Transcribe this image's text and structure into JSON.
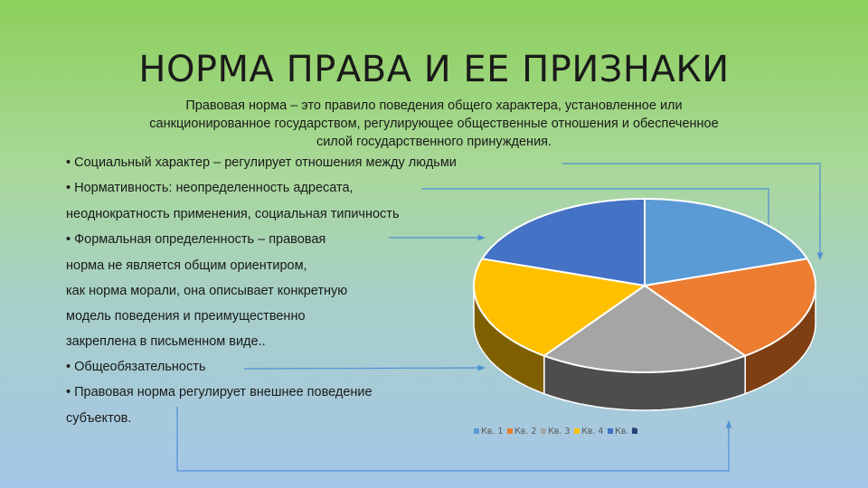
{
  "title": "НОРМА ПРАВА И ЕЕ ПРИЗНАКИ",
  "definition": {
    "line1": "Правовая норма – это правило поведения общего характера, установленное или",
    "line2": "санкционированное государством, регулирующее общественные отношения и обеспеченное",
    "line3": "силой государственного принуждения."
  },
  "lines": [
    "• Социальный характер – регулирует отношения между людьми",
    "• Нормативность: неопределенность адресата,",
    "неоднократность применения, социальная типичность",
    "• Формальная определенность – правовая",
    "норма не является общим ориентиром,",
    "как норма морали, она описывает конкретную",
    "модель поведения и преимущественно",
    "закреплена в письменном виде..",
    "• Общеобязательность",
    "• Правовая норма регулирует внешнее поведение",
    "субъектов."
  ],
  "colors": {
    "line": "#4f8fd4",
    "text": "#1a1a1a",
    "legend_text": "#595959",
    "series": [
      "#5b9bd5",
      "#ed7d31",
      "#a5a5a5",
      "#ffc000",
      "#4472c4"
    ],
    "sides": [
      "#36608a",
      "#7f3f13",
      "#4d4d4d",
      "#7f6000",
      "#2a4a86"
    ]
  },
  "chart_data": {
    "type": "pie",
    "style": "3d",
    "categories": [
      "Кв. 1",
      "Кв. 2",
      "Кв. 3",
      "Кв. 4",
      "Кв. 5"
    ],
    "values": [
      20,
      20,
      20,
      20,
      20
    ],
    "legend_position": "bottom",
    "legend_extra_marker_color": "#264478"
  }
}
